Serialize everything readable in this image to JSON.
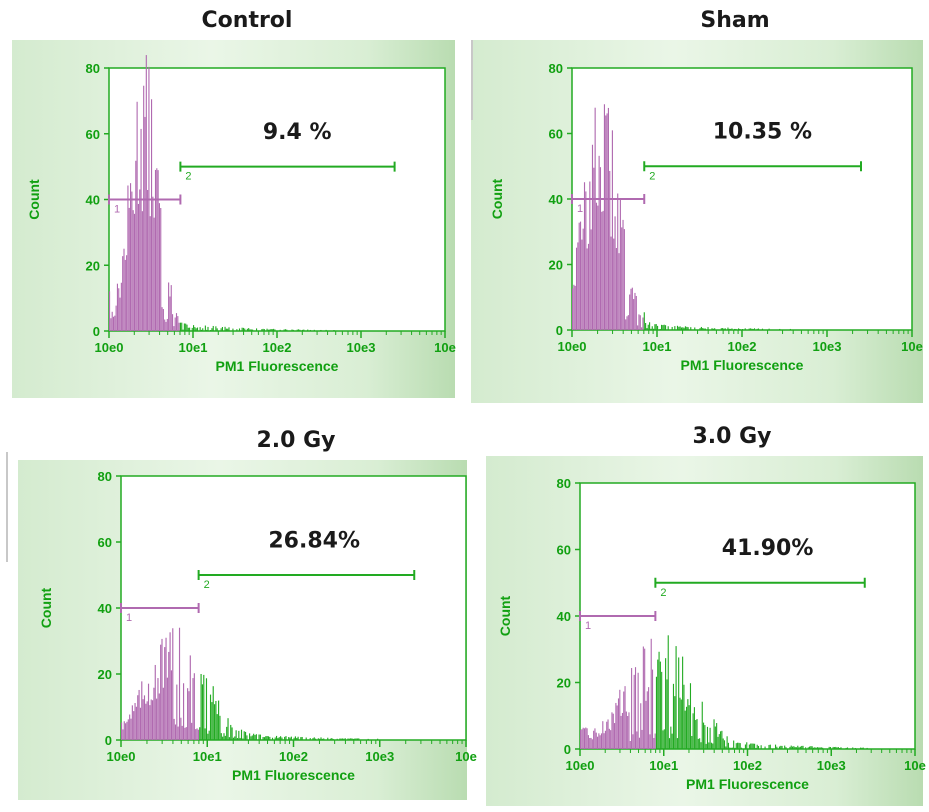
{
  "chart_data": [
    {
      "type": "histogram",
      "title": "Control",
      "xlabel": "PM1 Fluorescence",
      "ylabel": "Count",
      "x_scale": "log",
      "xticks": [
        "10e0",
        "10e1",
        "10e2",
        "10e3",
        "10e"
      ],
      "yticks": [
        "0",
        "20",
        "40",
        "60",
        "80"
      ],
      "ylim": [
        0,
        80
      ],
      "annotation": "9.4 %",
      "gates": [
        {
          "label": "1",
          "y": 40,
          "from_decade": 0,
          "to_decade": 0.85,
          "color": "#b06ab0"
        },
        {
          "label": "2",
          "y": 50,
          "from_decade": 0.85,
          "to_decade": 3.4,
          "color": "#22aa22"
        }
      ],
      "peak": {
        "decade": 0.42,
        "count": 66,
        "width": 0.17
      },
      "threshold_decade": 0.85,
      "tail_level": 3
    },
    {
      "type": "histogram",
      "title": "Sham",
      "xlabel": "PM1 Fluorescence",
      "ylabel": "Count",
      "x_scale": "log",
      "xticks": [
        "10e0",
        "10e1",
        "10e2",
        "10e3",
        "10e"
      ],
      "yticks": [
        "0",
        "20",
        "40",
        "60",
        "80"
      ],
      "ylim": [
        0,
        80
      ],
      "annotation": "10.35 %",
      "gates": [
        {
          "label": "1",
          "y": 40,
          "from_decade": 0,
          "to_decade": 0.85,
          "color": "#b06ab0"
        },
        {
          "label": "2",
          "y": 50,
          "from_decade": 0.85,
          "to_decade": 3.4,
          "color": "#22aa22"
        }
      ],
      "peak": {
        "decade": 0.35,
        "count": 56,
        "width": 0.22
      },
      "threshold_decade": 0.85,
      "tail_level": 3
    },
    {
      "type": "histogram",
      "title": "2.0 Gy",
      "xlabel": "PM1 Fluorescence",
      "ylabel": "Count",
      "x_scale": "log",
      "xticks": [
        "10e0",
        "10e1",
        "10e2",
        "10e3",
        "10e"
      ],
      "yticks": [
        "0",
        "20",
        "40",
        "60",
        "80"
      ],
      "ylim": [
        0,
        80
      ],
      "annotation": "26.84%",
      "gates": [
        {
          "label": "1",
          "y": 40,
          "from_decade": 0,
          "to_decade": 0.9,
          "color": "#b06ab0"
        },
        {
          "label": "2",
          "y": 50,
          "from_decade": 0.9,
          "to_decade": 3.4,
          "color": "#22aa22"
        }
      ],
      "peak": {
        "decade": 0.65,
        "count": 27,
        "width": 0.35
      },
      "threshold_decade": 0.9,
      "tail_level": 4
    },
    {
      "type": "histogram",
      "title": "3.0 Gy",
      "xlabel": "PM1 Fluorescence",
      "ylabel": "Count",
      "x_scale": "log",
      "xticks": [
        "10e0",
        "10e1",
        "10e2",
        "10e3",
        "10e"
      ],
      "yticks": [
        "0",
        "20",
        "40",
        "60",
        "80"
      ],
      "ylim": [
        0,
        80
      ],
      "annotation": "41.90%",
      "gates": [
        {
          "label": "1",
          "y": 40,
          "from_decade": 0,
          "to_decade": 0.9,
          "color": "#b06ab0"
        },
        {
          "label": "2",
          "y": 50,
          "from_decade": 0.9,
          "to_decade": 3.4,
          "color": "#22aa22"
        }
      ],
      "peak": {
        "decade": 0.95,
        "count": 28,
        "width": 0.4
      },
      "threshold_decade": 0.9,
      "tail_level": 5
    }
  ]
}
